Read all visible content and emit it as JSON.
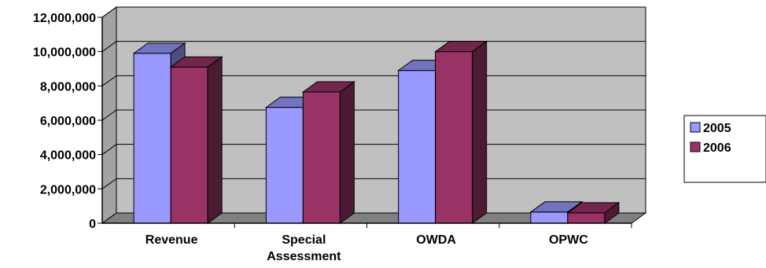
{
  "chart_data": {
    "type": "bar",
    "style": "3d-clustered-column",
    "categories": [
      [
        "Revenue"
      ],
      [
        "Special",
        "Assessment"
      ],
      [
        "OWDA"
      ],
      [
        "OPWC"
      ]
    ],
    "series": [
      {
        "name": "2005",
        "color": "#9999ff",
        "values": [
          9900000,
          6750000,
          8900000,
          650000
        ]
      },
      {
        "name": "2006",
        "color": "#993366",
        "values": [
          9100000,
          7650000,
          10000000,
          600000
        ]
      }
    ],
    "ylim": [
      0,
      12000000
    ],
    "yticks": [
      0,
      2000000,
      4000000,
      6000000,
      8000000,
      10000000,
      12000000
    ],
    "ytick_labels": [
      "0",
      "2,000,000",
      "4,000,000",
      "6,000,000",
      "8,000,000",
      "10,000,000",
      "12,000,000"
    ],
    "wall_color": "#c0c0c0",
    "grid": true,
    "legend_position": "right"
  }
}
